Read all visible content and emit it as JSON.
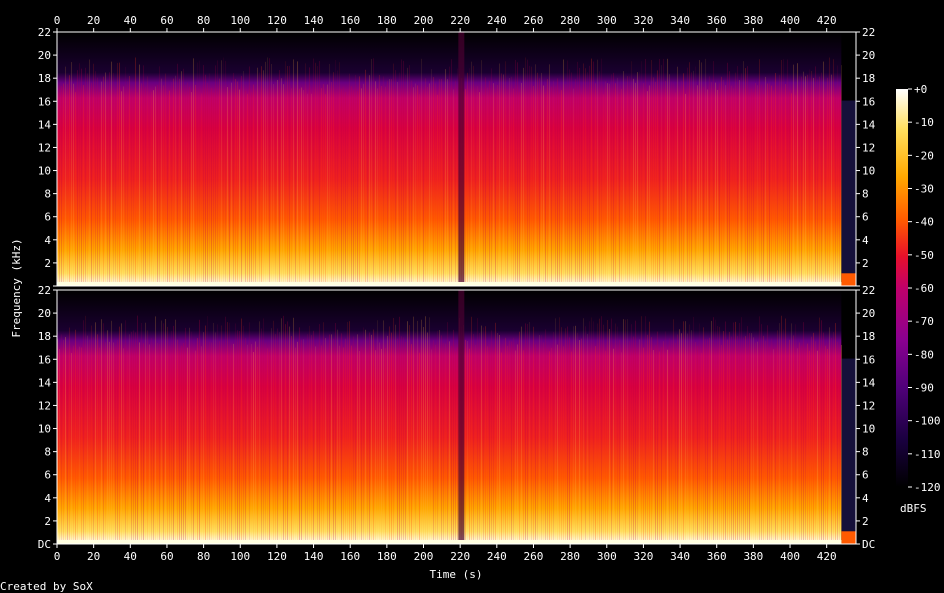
{
  "chart_data": {
    "type": "heatmap",
    "title": "",
    "xlabel": "Time (s)",
    "ylabel": "Frequency (kHz)",
    "xlim": [
      0,
      436
    ],
    "ylim": [
      0,
      22
    ],
    "x_ticks": [
      0,
      20,
      40,
      60,
      80,
      100,
      120,
      140,
      160,
      180,
      200,
      220,
      240,
      260,
      280,
      300,
      320,
      340,
      360,
      380,
      400,
      420
    ],
    "x_tick_labels": [
      "0",
      "20",
      "40",
      "60",
      "80",
      "100",
      "120",
      "140",
      "160",
      "180",
      "200",
      "220",
      "240",
      "260",
      "280",
      "300",
      "320",
      "340",
      "360",
      "380",
      "400",
      "420"
    ],
    "y_ticks": [
      0,
      2,
      4,
      6,
      8,
      10,
      12,
      14,
      16,
      18,
      20,
      22
    ],
    "y_tick_labels_top": [
      "",
      "2",
      "4",
      "6",
      "8",
      "10",
      "12",
      "14",
      "16",
      "18",
      "20",
      "22"
    ],
    "y_tick_labels_bottom": [
      "DC",
      "2",
      "4",
      "6",
      "8",
      "10",
      "12",
      "14",
      "16",
      "18",
      "20",
      "22"
    ],
    "channels": 2,
    "audio_end_s": 428,
    "colorbar": {
      "label": "dBFS",
      "ticks": [
        0,
        -10,
        -20,
        -30,
        -40,
        -50,
        -60,
        -70,
        -80,
        -90,
        -100,
        -110,
        -120
      ],
      "tick_labels": [
        "+0",
        "-10",
        "-20",
        "-30",
        "-40",
        "-50",
        "-60",
        "-70",
        "-80",
        "-90",
        "-100",
        "-110",
        "-120"
      ],
      "range": [
        -120,
        0
      ],
      "colors": [
        "#000000",
        "#1a0040",
        "#50007a",
        "#8a0090",
        "#c0006a",
        "#e8102a",
        "#ff5a00",
        "#ffa800",
        "#ffe060",
        "#ffffff"
      ]
    }
  },
  "footer": {
    "credit": "Created by SoX"
  }
}
